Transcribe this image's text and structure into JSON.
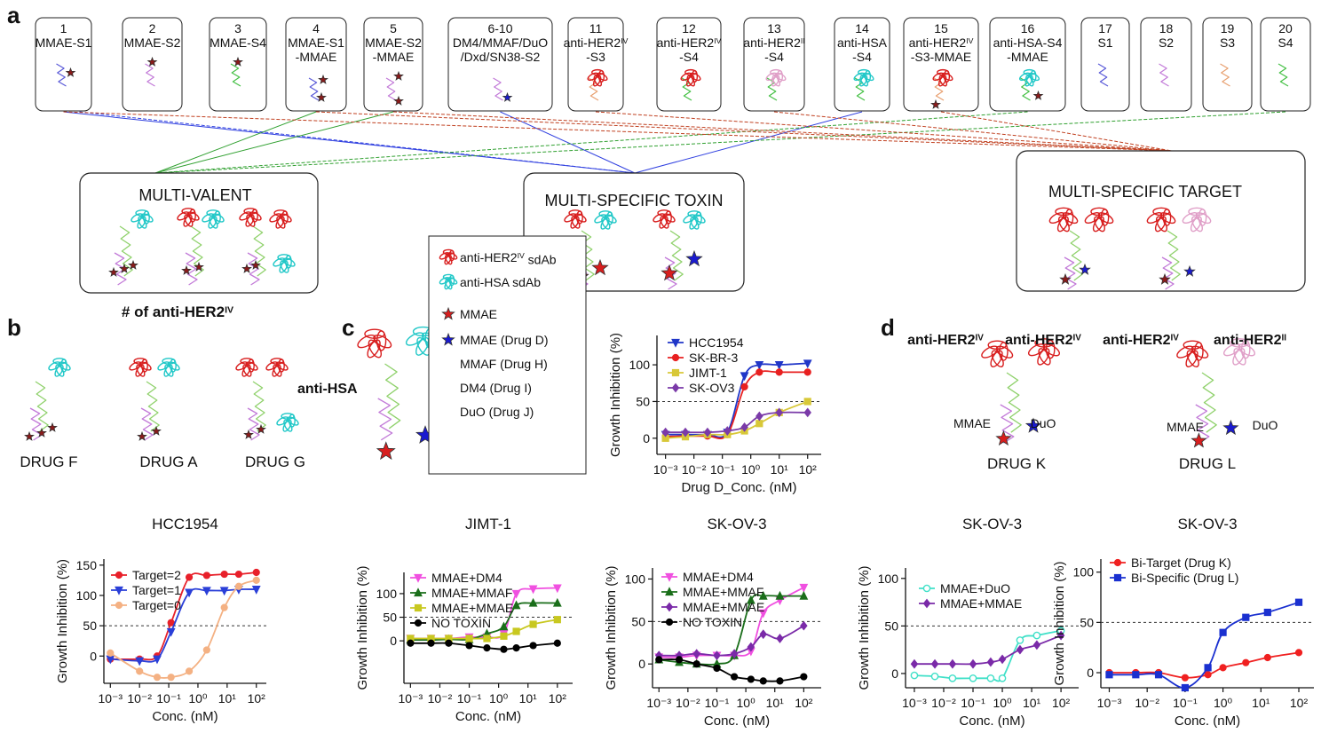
{
  "panel_labels": [
    "a",
    "b",
    "c",
    "d"
  ],
  "panel_a": {
    "constructs": [
      {
        "number": "1",
        "lines": [
          "MMAE-S1"
        ]
      },
      {
        "number": "2",
        "lines": [
          "MMAE-S2"
        ]
      },
      {
        "number": "3",
        "lines": [
          "MMAE-S4"
        ]
      },
      {
        "number": "4",
        "lines": [
          "MMAE-S1",
          "-MMAE"
        ]
      },
      {
        "number": "5",
        "lines": [
          "MMAE-S2",
          "-MMAE"
        ]
      },
      {
        "number": "6-10",
        "lines": [
          "DM4/MMAF/DuO",
          "/Dxd/SN38-S2"
        ]
      },
      {
        "number": "11",
        "lines": [
          {
            "text": "anti-HER2",
            "sup": "IV"
          },
          "-S3"
        ]
      },
      {
        "number": "12",
        "lines": [
          {
            "text": "anti-HER2",
            "sup": "IV"
          },
          "-S4"
        ]
      },
      {
        "number": "13",
        "lines": [
          {
            "text": "anti-HER2",
            "sup": "II"
          },
          "-S4"
        ]
      },
      {
        "number": "14",
        "lines": [
          "anti-HSA",
          "-S4"
        ]
      },
      {
        "number": "15",
        "lines": [
          {
            "text": "anti-HER2",
            "sup": "IV"
          },
          "-S3-MMAE"
        ]
      },
      {
        "number": "16",
        "lines": [
          "anti-HSA-S4",
          "-MMAE"
        ]
      },
      {
        "number": "17",
        "lines": [
          "S1"
        ]
      },
      {
        "number": "18",
        "lines": [
          "S2"
        ]
      },
      {
        "number": "19",
        "lines": [
          "S3"
        ]
      },
      {
        "number": "20",
        "lines": [
          "S4"
        ]
      }
    ],
    "groups": [
      "MULTI-VALENT",
      "MULTI-SPECIFIC TOXIN",
      "MULTI-SPECIFIC TARGET"
    ]
  },
  "panel_b": {
    "heading": {
      "text": "# of anti-HER2",
      "sup": "IV"
    },
    "hsa_label": "anti-HSA",
    "drugs": [
      "DRUG F",
      "DRUG A",
      "DRUG G"
    ]
  },
  "panel_c": {
    "legend": [
      {
        "text": "anti-HER2",
        "sup": "IV",
        "after": " sdAb"
      },
      "anti-HSA sdAb",
      "MMAE",
      "MMAE (Drug D)",
      "MMAF (Drug H)",
      "DM4    (Drug I)",
      "DuO    (Drug J)"
    ]
  },
  "panel_d": {
    "targets": [
      {
        "text": "anti-HER2",
        "sup": "IV"
      },
      {
        "text": "anti-HER2",
        "sup": "IV"
      },
      {
        "text": "anti-HER2",
        "sup": "IV"
      },
      {
        "text": "anti-HER2",
        "sup": "II"
      }
    ],
    "payloads": [
      "MMAE",
      "DuO",
      "MMAE",
      "DuO"
    ],
    "drugs": [
      "DRUG K",
      "DRUG L"
    ]
  },
  "chart_data": [
    {
      "type": "line",
      "title": "HCC1954",
      "xlabel": "Conc. (nM)",
      "ylabel": "Growth Inhibition (%)",
      "xscale": "log",
      "xlim": [
        0.0006,
        220
      ],
      "ylim": [
        -45,
        160
      ],
      "xticks": [
        {
          "value": 0.001,
          "label": "10⁻³"
        },
        {
          "value": 0.01,
          "label": "10⁻²"
        },
        {
          "value": 0.1,
          "label": "10⁻¹"
        },
        {
          "value": 1,
          "label": "10⁰"
        },
        {
          "value": 10,
          "label": "10¹"
        },
        {
          "value": 100,
          "label": "10²"
        }
      ],
      "yticks": [
        0,
        50,
        100,
        150
      ],
      "reference_line": 50,
      "legend": "upper left",
      "x": [
        0.001,
        0.01,
        0.04,
        0.12,
        0.5,
        2,
        8,
        25,
        100
      ],
      "series": [
        {
          "name": "Target=2",
          "color": "#e8202a",
          "marker": "circle",
          "values": [
            -5,
            -5,
            0,
            55,
            130,
            133,
            135,
            135,
            138
          ]
        },
        {
          "name": "Target=1",
          "color": "#2a3fd8",
          "marker": "triangle-down",
          "values": [
            -5,
            -8,
            -5,
            40,
            105,
            108,
            108,
            110,
            110
          ]
        },
        {
          "name": "Target=0",
          "color": "#f4b183",
          "marker": "circle",
          "values": [
            5,
            -25,
            -35,
            -35,
            -25,
            10,
            80,
            115,
            125
          ]
        }
      ]
    },
    {
      "type": "line",
      "xlabel": "Drug D_Conc. (nM)",
      "ylabel": "Growth Inhibition (%)",
      "xscale": "log",
      "xlim": [
        0.0005,
        300
      ],
      "ylim": [
        -22,
        140
      ],
      "xticks": [
        {
          "value": 0.001,
          "label": "10⁻³"
        },
        {
          "value": 0.01,
          "label": "10⁻²"
        },
        {
          "value": 0.1,
          "label": "10⁻¹"
        },
        {
          "value": 1,
          "label": "10⁰"
        },
        {
          "value": 10,
          "label": "10¹"
        },
        {
          "value": 100,
          "label": "10²"
        }
      ],
      "yticks": [
        0,
        50,
        100
      ],
      "reference_line": 50,
      "legend": "upper left",
      "x": [
        0.001,
        0.005,
        0.03,
        0.15,
        0.6,
        2,
        10,
        100
      ],
      "series": [
        {
          "name": "HCC1954",
          "color": "#2036c8",
          "marker": "triangle-down",
          "values": [
            5,
            5,
            5,
            8,
            85,
            100,
            100,
            102
          ]
        },
        {
          "name": "SK-BR-3",
          "color": "#e82020",
          "marker": "circle",
          "values": [
            2,
            3,
            3,
            5,
            70,
            90,
            90,
            90
          ]
        },
        {
          "name": "JIMT-1",
          "color": "#d8c838",
          "marker": "square",
          "values": [
            0,
            2,
            5,
            5,
            10,
            20,
            35,
            50
          ]
        },
        {
          "name": "SK-OV3",
          "color": "#7a3aa8",
          "marker": "diamond",
          "values": [
            8,
            8,
            8,
            10,
            15,
            30,
            35,
            35
          ]
        }
      ]
    },
    {
      "type": "line",
      "title": "JIMT-1",
      "xlabel": "Conc. (nM)",
      "ylabel": "Growth Inhibition (%)",
      "xscale": "log",
      "xlim": [
        0.0006,
        330
      ],
      "ylim": [
        -90,
        145
      ],
      "xticks": [
        {
          "value": 0.001,
          "label": "10⁻³"
        },
        {
          "value": 0.01,
          "label": "10⁻²"
        },
        {
          "value": 0.1,
          "label": "10⁻¹"
        },
        {
          "value": 1,
          "label": "10⁰"
        },
        {
          "value": 10,
          "label": "10¹"
        },
        {
          "value": 100,
          "label": "10²"
        }
      ],
      "yticks": [
        0,
        50,
        100
      ],
      "reference_line": 50,
      "legend": "upper left",
      "x": [
        0.001,
        0.005,
        0.02,
        0.1,
        0.4,
        1.5,
        4,
        15,
        100
      ],
      "series": [
        {
          "name": "MMAE+DM4",
          "color": "#f050e0",
          "marker": "triangle-down",
          "values": [
            5,
            5,
            5,
            8,
            8,
            15,
            100,
            110,
            112
          ]
        },
        {
          "name": "MMAE+MMAF",
          "color": "#1a6e1a",
          "marker": "triangle",
          "values": [
            2,
            2,
            3,
            3,
            15,
            30,
            75,
            80,
            80
          ]
        },
        {
          "name": "MMAE+MMAE",
          "color": "#c8c820",
          "marker": "square",
          "values": [
            5,
            5,
            5,
            5,
            5,
            10,
            20,
            35,
            45
          ]
        },
        {
          "name": "NO TOXIN",
          "color": "#000000",
          "marker": "circle",
          "values": [
            -5,
            -5,
            -5,
            -10,
            -15,
            -18,
            -15,
            -10,
            -5
          ]
        }
      ]
    },
    {
      "type": "line",
      "title": "SK-OV-3",
      "xlabel": "Conc. (nM)",
      "ylabel": "Growth Inhibition (%)",
      "xscale": "log",
      "xlim": [
        0.0006,
        400
      ],
      "ylim": [
        -28,
        113
      ],
      "xticks": [
        {
          "value": 0.001,
          "label": "10⁻³"
        },
        {
          "value": 0.01,
          "label": "10⁻²"
        },
        {
          "value": 0.1,
          "label": "10⁻¹"
        },
        {
          "value": 1,
          "label": "10⁰"
        },
        {
          "value": 10,
          "label": "10¹"
        },
        {
          "value": 100,
          "label": "10²"
        }
      ],
      "yticks": [
        0,
        50,
        100
      ],
      "reference_line": 50,
      "legend": "upper left",
      "x": [
        0.001,
        0.005,
        0.02,
        0.1,
        0.4,
        1.5,
        4,
        15,
        100
      ],
      "series": [
        {
          "name": "MMAE+DM4",
          "color": "#f050e0",
          "marker": "triangle-down",
          "values": [
            8,
            8,
            10,
            10,
            10,
            15,
            60,
            75,
            90
          ]
        },
        {
          "name": "MMAE+MMAF",
          "color": "#1a6e1a",
          "marker": "triangle",
          "values": [
            5,
            2,
            0,
            0,
            10,
            75,
            80,
            80,
            80
          ]
        },
        {
          "name": "MMAE+MMAE",
          "color": "#7a2aa8",
          "marker": "diamond",
          "values": [
            10,
            10,
            12,
            10,
            12,
            20,
            35,
            30,
            45
          ]
        },
        {
          "name": "NO TOXIN",
          "color": "#000000",
          "marker": "circle",
          "values": [
            5,
            5,
            0,
            -5,
            -15,
            -18,
            -20,
            -20,
            -15
          ]
        }
      ]
    },
    {
      "type": "line",
      "title": "SK-OV-3",
      "xlabel": "Conc. (nM)",
      "ylabel": "Growth Inhibition (%)",
      "xscale": "log",
      "xlim": [
        0.0005,
        400
      ],
      "ylim": [
        -15,
        111
      ],
      "xticks": [
        {
          "value": 0.001,
          "label": "10⁻³"
        },
        {
          "value": 0.01,
          "label": "10⁻²"
        },
        {
          "value": 0.1,
          "label": "10⁻¹"
        },
        {
          "value": 1,
          "label": "10⁰"
        },
        {
          "value": 10,
          "label": "10¹"
        },
        {
          "value": 100,
          "label": "10²"
        }
      ],
      "yticks": [
        0,
        50,
        100
      ],
      "reference_line": 50,
      "legend": "upper left",
      "x": [
        0.001,
        0.005,
        0.02,
        0.1,
        0.4,
        1,
        4,
        15,
        100
      ],
      "series": [
        {
          "name": "MMAE+DuO",
          "color": "#40e0c8",
          "marker": "open-circle",
          "values": [
            -2,
            -3,
            -5,
            -5,
            -5,
            -5,
            35,
            40,
            45
          ]
        },
        {
          "name": "MMAE+MMAE",
          "color": "#7a2aa8",
          "marker": "diamond",
          "values": [
            10,
            10,
            10,
            10,
            12,
            15,
            25,
            30,
            40
          ]
        }
      ]
    },
    {
      "type": "line",
      "title": "SK-OV-3",
      "xlabel": "Conc. (nM)",
      "ylabel": "Growth Inhibition (%)",
      "xscale": "log",
      "xlim": [
        0.0006,
        250
      ],
      "ylim": [
        -15,
        113
      ],
      "xticks": [
        {
          "value": 0.001,
          "label": "10⁻³"
        },
        {
          "value": 0.01,
          "label": "10⁻²"
        },
        {
          "value": 0.1,
          "label": "10⁻¹"
        },
        {
          "value": 1,
          "label": "10⁰"
        },
        {
          "value": 10,
          "label": "10¹"
        },
        {
          "value": 100,
          "label": "10²"
        }
      ],
      "yticks": [
        0,
        50,
        100
      ],
      "reference_line": 50,
      "legend": "upper left",
      "x": [
        0.001,
        0.005,
        0.02,
        0.1,
        0.4,
        1,
        4,
        15,
        100
      ],
      "series": [
        {
          "name": "Bi-Target (Drug K)",
          "color": "#f02020",
          "marker": "circle",
          "values": [
            0,
            0,
            0,
            -5,
            -2,
            5,
            10,
            15,
            20
          ]
        },
        {
          "name": "Bi-Specific (Drug L)",
          "color": "#1a30d0",
          "marker": "square",
          "values": [
            -2,
            -2,
            -2,
            -15,
            5,
            40,
            55,
            60,
            70
          ]
        }
      ]
    }
  ]
}
